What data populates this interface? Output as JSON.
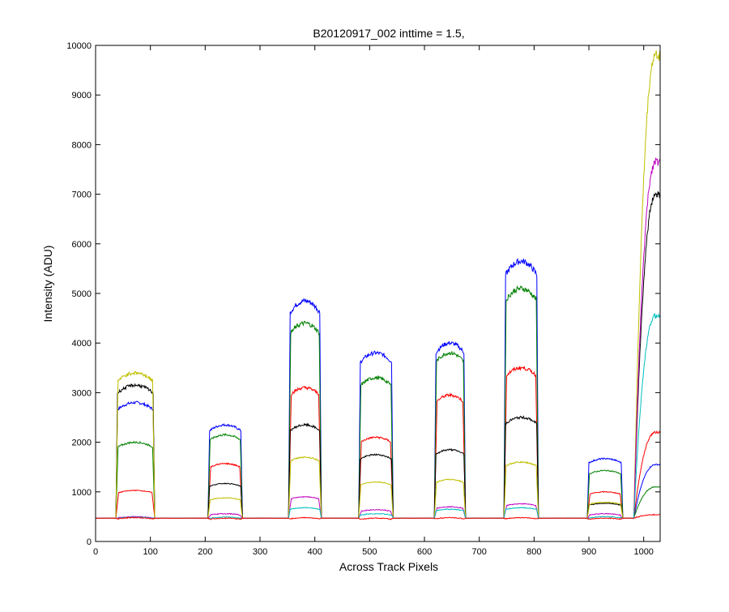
{
  "chart_data": {
    "type": "line",
    "title": "B20120917_002 inttime = 1.5,",
    "xlabel": "Across Track Pixels",
    "ylabel": "Intensity (ADU)",
    "xlim": [
      0,
      1030
    ],
    "ylim": [
      0,
      10000
    ],
    "xticks": [
      0,
      100,
      200,
      300,
      400,
      500,
      600,
      700,
      800,
      900,
      1000
    ],
    "yticks": [
      0,
      1000,
      2000,
      3000,
      4000,
      5000,
      6000,
      7000,
      8000,
      9000,
      10000
    ],
    "grid": false,
    "legend": "none",
    "baseline": 470,
    "segments": [
      {
        "start": 37,
        "end": 108
      },
      {
        "start": 205,
        "end": 268
      },
      {
        "start": 352,
        "end": 412
      },
      {
        "start": 480,
        "end": 543
      },
      {
        "start": 618,
        "end": 675
      },
      {
        "start": 745,
        "end": 808
      },
      {
        "start": 897,
        "end": 962
      },
      {
        "start": 982,
        "end": 1030,
        "rising": true
      }
    ],
    "series": [
      {
        "color": "#0000ff",
        "levels": [
          2800,
          2350,
          4850,
          3800,
          4000,
          5650,
          1670,
          1550
        ]
      },
      {
        "color": "#008000",
        "levels": [
          2000,
          2150,
          4400,
          3300,
          3800,
          5100,
          1430,
          1100
        ]
      },
      {
        "color": "#ff0000",
        "levels": [
          1030,
          1570,
          3100,
          2100,
          2950,
          3500,
          1000,
          2200
        ]
      },
      {
        "color": "#000000",
        "levels": [
          3150,
          1170,
          2350,
          1750,
          1850,
          2500,
          770,
          7000
        ]
      },
      {
        "color": "#bfbf00",
        "levels": [
          3400,
          880,
          1700,
          1200,
          1250,
          1600,
          790,
          9800
        ]
      },
      {
        "color": "#bf00bf",
        "levels": [
          500,
          560,
          900,
          640,
          700,
          760,
          560,
          7650
        ]
      },
      {
        "color": "#00bfbf",
        "levels": [
          490,
          490,
          680,
          560,
          650,
          680,
          500,
          4550
        ]
      },
      {
        "color": "#ff0000",
        "levels": [
          480,
          470,
          480,
          470,
          480,
          480,
          470,
          540
        ]
      }
    ]
  }
}
